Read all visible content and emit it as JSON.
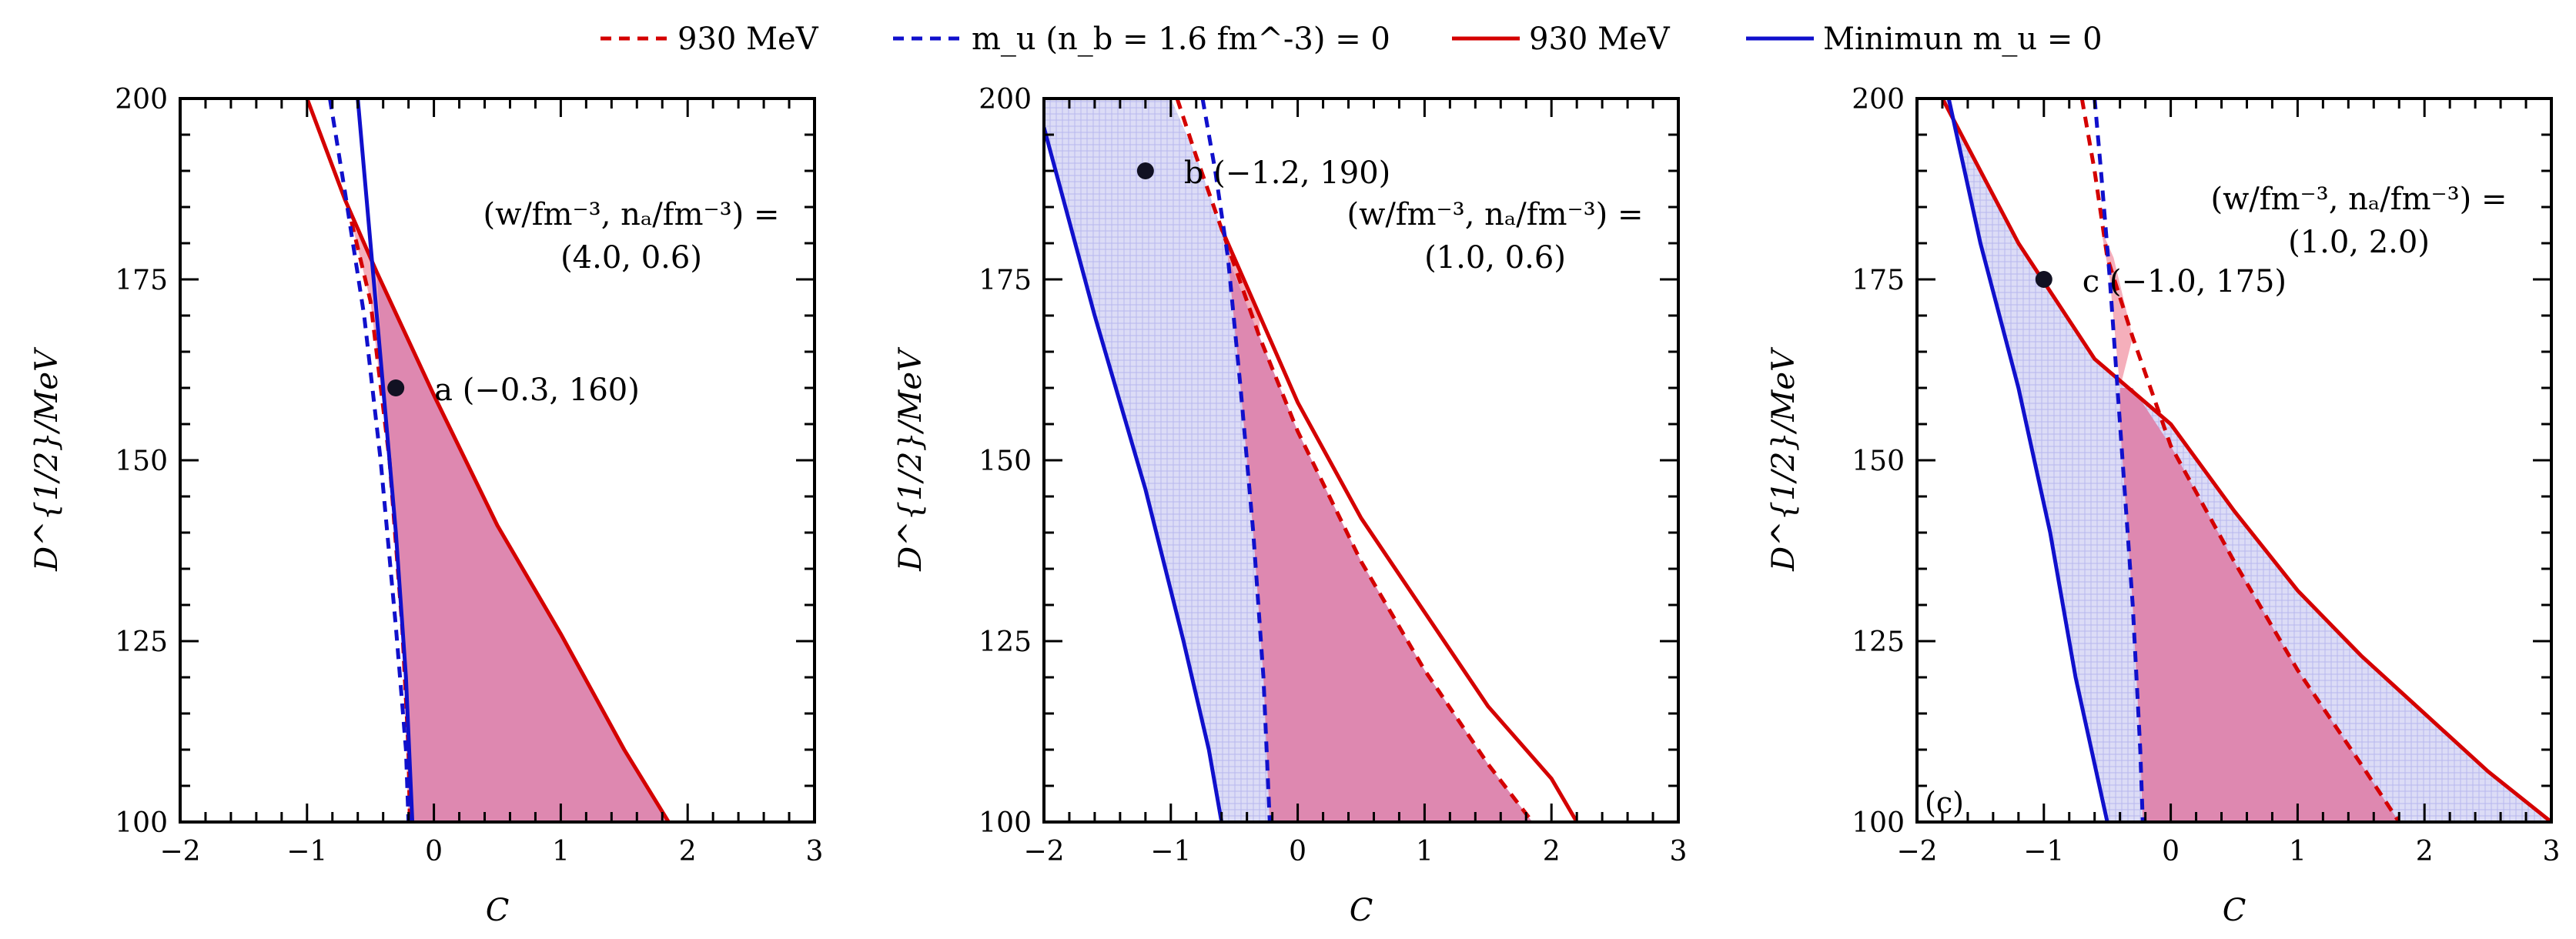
{
  "legend": [
    {
      "label": "930 MeV",
      "color": "#d40000",
      "dash": true
    },
    {
      "label": "m_u (n_b = 1.6 fm^-3) = 0",
      "color": "#1010cc",
      "dash": true
    },
    {
      "label": "930 MeV",
      "color": "#d40000",
      "dash": false
    },
    {
      "label": "Minimun m_u = 0",
      "color": "#1010cc",
      "dash": false
    }
  ],
  "colors": {
    "red": "#d40000",
    "blue": "#1010cc",
    "red_fill": "#f4a6b4",
    "purple_fill": "#de88b0",
    "blue_fill": "#dcdcf6"
  },
  "chart_data": [
    {
      "type": "line",
      "xlabel": "C",
      "ylabel": "D^{1/2}/MeV",
      "xlim": [
        -2,
        3
      ],
      "ylim": [
        100,
        200
      ],
      "xticks": [
        "−2",
        "−1",
        "0",
        "1",
        "2",
        "3"
      ],
      "yticks": [
        "100",
        "125",
        "150",
        "175",
        "200"
      ],
      "annotation": [
        "(w/fm⁻³, nₐ/fm⁻³) =",
        "(4.0, 0.6)"
      ],
      "point": {
        "x": -0.3,
        "y": 160,
        "label": "a (−0.3, 160)"
      },
      "panel_tag": "",
      "series": [
        {
          "style": "red-solid",
          "points": [
            [
              -1.0,
              200
            ],
            [
              -0.7,
              186
            ],
            [
              -0.45,
              176
            ],
            [
              0.0,
              159
            ],
            [
              0.5,
              141
            ],
            [
              1.0,
              126
            ],
            [
              1.5,
              110
            ],
            [
              1.85,
              100
            ]
          ]
        },
        {
          "style": "red-dashed",
          "points": [
            [
              -0.65,
              183
            ],
            [
              -0.5,
              172
            ],
            [
              -0.35,
              150
            ],
            [
              -0.25,
              127
            ],
            [
              -0.2,
              110
            ],
            [
              -0.19,
              100
            ]
          ]
        },
        {
          "style": "blue-dashed",
          "points": [
            [
              -0.82,
              200
            ],
            [
              -0.7,
              187
            ],
            [
              -0.55,
              170
            ],
            [
              -0.42,
              150
            ],
            [
              -0.3,
              127
            ],
            [
              -0.22,
              110
            ],
            [
              -0.2,
              100
            ]
          ]
        },
        {
          "style": "blue-solid",
          "points": [
            [
              -0.6,
              200
            ],
            [
              -0.5,
              180
            ],
            [
              -0.4,
              160
            ],
            [
              -0.3,
              140
            ],
            [
              -0.22,
              120
            ],
            [
              -0.17,
              100
            ]
          ]
        }
      ],
      "fills": [
        {
          "style": "red_fill",
          "points": [
            [
              -0.65,
              183
            ],
            [
              -0.45,
              176
            ],
            [
              -0.37,
              160
            ],
            [
              -0.3,
              140
            ],
            [
              -0.22,
              120
            ],
            [
              -0.17,
              100
            ],
            [
              -0.2,
              100
            ],
            [
              -0.25,
              127
            ],
            [
              -0.35,
              150
            ],
            [
              -0.5,
              172
            ]
          ]
        },
        {
          "style": "purple_fill",
          "points": [
            [
              -0.45,
              176
            ],
            [
              0.0,
              159
            ],
            [
              0.5,
              141
            ],
            [
              1.0,
              126
            ],
            [
              1.5,
              110
            ],
            [
              1.85,
              100
            ],
            [
              -0.17,
              100
            ],
            [
              -0.22,
              120
            ],
            [
              -0.3,
              140
            ],
            [
              -0.4,
              160
            ]
          ]
        }
      ]
    },
    {
      "type": "line",
      "xlabel": "C",
      "ylabel": "D^{1/2}/MeV",
      "xlim": [
        -2,
        3
      ],
      "ylim": [
        100,
        200
      ],
      "xticks": [
        "−2",
        "−1",
        "0",
        "1",
        "2",
        "3"
      ],
      "yticks": [
        "100",
        "125",
        "150",
        "175",
        "200"
      ],
      "annotation": [
        "(w/fm⁻³, nₐ/fm⁻³) =",
        "(1.0, 0.6)"
      ],
      "point": {
        "x": -1.2,
        "y": 190,
        "label": "b (−1.2, 190)"
      },
      "panel_tag": "",
      "series": [
        {
          "style": "red-solid",
          "points": [
            [
              -0.6,
              182
            ],
            [
              -0.3,
              170
            ],
            [
              0.0,
              158
            ],
            [
              0.5,
              142
            ],
            [
              1.0,
              129
            ],
            [
              1.5,
              116
            ],
            [
              2.0,
              106
            ],
            [
              2.2,
              100
            ]
          ]
        },
        {
          "style": "red-dashed",
          "points": [
            [
              -0.95,
              200
            ],
            [
              -0.8,
              192
            ],
            [
              -0.6,
              182
            ],
            [
              -0.3,
              167
            ],
            [
              0.0,
              154
            ],
            [
              0.5,
              136
            ],
            [
              1.0,
              121
            ],
            [
              1.5,
              108
            ],
            [
              1.85,
              100
            ]
          ]
        },
        {
          "style": "blue-dashed",
          "points": [
            [
              -0.75,
              200
            ],
            [
              -0.65,
              190
            ],
            [
              -0.55,
              178
            ],
            [
              -0.45,
              160
            ],
            [
              -0.35,
              140
            ],
            [
              -0.27,
              120
            ],
            [
              -0.22,
              100
            ]
          ]
        },
        {
          "style": "blue-solid",
          "points": [
            [
              -2.0,
              196
            ],
            [
              -1.6,
              170
            ],
            [
              -1.2,
              146
            ],
            [
              -0.9,
              125
            ],
            [
              -0.7,
              110
            ],
            [
              -0.6,
              100
            ]
          ]
        }
      ],
      "fills": [
        {
          "style": "blue_fill",
          "points": [
            [
              -2.0,
              200
            ],
            [
              -1.0,
              200
            ],
            [
              -0.8,
              192
            ],
            [
              -0.6,
              182
            ],
            [
              -0.3,
              167
            ],
            [
              0.0,
              154
            ],
            [
              0.5,
              136
            ],
            [
              1.0,
              121
            ],
            [
              1.5,
              108
            ],
            [
              1.85,
              100
            ],
            [
              -0.6,
              100
            ],
            [
              -0.7,
              110
            ],
            [
              -0.9,
              125
            ],
            [
              -1.2,
              146
            ],
            [
              -1.6,
              170
            ],
            [
              -2.0,
              196
            ]
          ]
        },
        {
          "style": "red_fill",
          "points": [
            [
              -0.6,
              182
            ],
            [
              -0.3,
              170
            ],
            [
              -0.3,
              167
            ],
            [
              -0.55,
              178
            ]
          ]
        },
        {
          "style": "purple_fill",
          "points": [
            [
              -0.55,
              178
            ],
            [
              -0.3,
              167
            ],
            [
              0.0,
              154
            ],
            [
              0.5,
              136
            ],
            [
              1.0,
              121
            ],
            [
              1.5,
              108
            ],
            [
              1.85,
              100
            ],
            [
              -0.22,
              100
            ],
            [
              -0.27,
              120
            ],
            [
              -0.35,
              140
            ],
            [
              -0.45,
              160
            ]
          ]
        }
      ]
    },
    {
      "type": "line",
      "xlabel": "C",
      "ylabel": "D^{1/2}/MeV",
      "xlim": [
        -2,
        3
      ],
      "ylim": [
        100,
        200
      ],
      "xticks": [
        "−2",
        "−1",
        "0",
        "1",
        "2",
        "3"
      ],
      "yticks": [
        "100",
        "125",
        "150",
        "175",
        "200"
      ],
      "annotation": [
        "(w/fm⁻³, nₐ/fm⁻³) =",
        "(1.0, 2.0)"
      ],
      "point": {
        "x": -1.0,
        "y": 175,
        "label": "c (−1.0, 175)"
      },
      "panel_tag": "(c)",
      "series": [
        {
          "style": "red-solid",
          "points": [
            [
              -1.8,
              200
            ],
            [
              -1.2,
              180
            ],
            [
              -0.6,
              164
            ],
            [
              0.0,
              155
            ],
            [
              0.5,
              143
            ],
            [
              1.0,
              132
            ],
            [
              1.5,
              123
            ],
            [
              2.0,
              115
            ],
            [
              2.5,
              107
            ],
            [
              3.0,
              100
            ]
          ]
        },
        {
          "style": "red-dashed",
          "points": [
            [
              -0.7,
              200
            ],
            [
              -0.6,
              190
            ],
            [
              -0.5,
              178
            ],
            [
              -0.3,
              167
            ],
            [
              0.0,
              152
            ],
            [
              0.5,
              136
            ],
            [
              1.0,
              121
            ],
            [
              1.5,
              108
            ],
            [
              1.8,
              100
            ]
          ]
        },
        {
          "style": "blue-dashed",
          "points": [
            [
              -0.6,
              200
            ],
            [
              -0.55,
              190
            ],
            [
              -0.48,
              175
            ],
            [
              -0.4,
              155
            ],
            [
              -0.3,
              130
            ],
            [
              -0.24,
              110
            ],
            [
              -0.22,
              100
            ]
          ]
        },
        {
          "style": "blue-solid",
          "points": [
            [
              -1.75,
              200
            ],
            [
              -1.5,
              180
            ],
            [
              -1.2,
              160
            ],
            [
              -0.95,
              140
            ],
            [
              -0.75,
              120
            ],
            [
              -0.5,
              100
            ]
          ]
        }
      ],
      "fills": [
        {
          "style": "blue_fill",
          "points": [
            [
              -1.75,
              200
            ],
            [
              -1.8,
              200
            ],
            [
              -1.2,
              180
            ],
            [
              -0.6,
              164
            ],
            [
              0.0,
              155
            ],
            [
              0.5,
              143
            ],
            [
              1.0,
              132
            ],
            [
              1.5,
              123
            ],
            [
              2.0,
              115
            ],
            [
              2.5,
              107
            ],
            [
              3.0,
              100
            ],
            [
              -0.5,
              100
            ],
            [
              -0.75,
              120
            ],
            [
              -0.95,
              140
            ],
            [
              -1.2,
              160
            ],
            [
              -1.5,
              180
            ]
          ]
        },
        {
          "style": "red_fill",
          "points": [
            [
              -0.55,
              182
            ],
            [
              -0.45,
              178
            ],
            [
              -0.3,
              167
            ],
            [
              -0.4,
              160
            ],
            [
              -0.48,
              175
            ]
          ]
        },
        {
          "style": "purple_fill",
          "points": [
            [
              -0.4,
              160
            ],
            [
              -0.3,
              160
            ],
            [
              0.0,
              152
            ],
            [
              0.5,
              136
            ],
            [
              1.0,
              121
            ],
            [
              1.5,
              108
            ],
            [
              1.8,
              100
            ],
            [
              -0.22,
              100
            ],
            [
              -0.24,
              110
            ],
            [
              -0.3,
              130
            ],
            [
              -0.4,
              155
            ]
          ]
        }
      ]
    }
  ]
}
